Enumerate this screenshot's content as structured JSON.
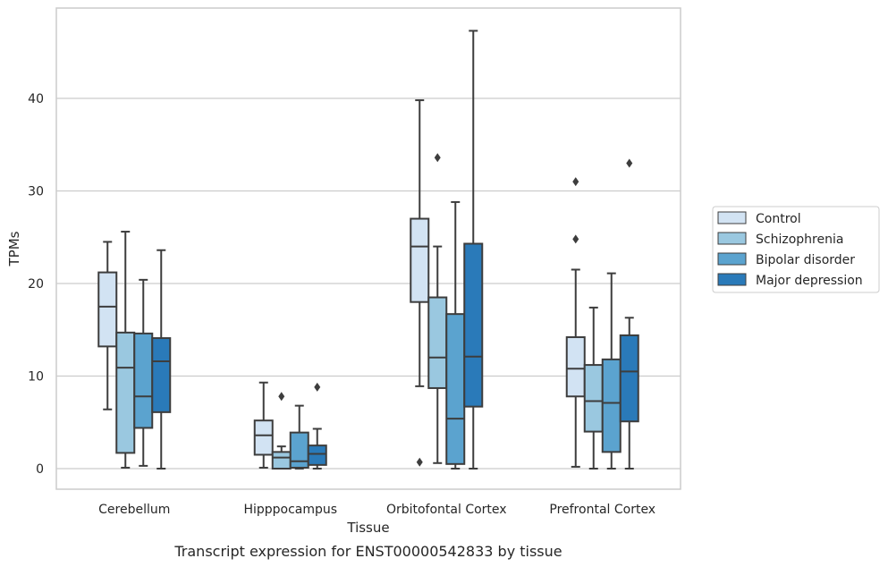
{
  "chart_data": {
    "type": "box",
    "title": "",
    "caption": "Transcript expression for ENST00000542833 by tissue",
    "xlabel": "Tissue",
    "ylabel": "TPMs",
    "ylim": [
      -2.3,
      49.5
    ],
    "yticks": [
      0,
      10,
      20,
      30,
      40
    ],
    "grid": "horizontal",
    "legend_position": "right-outside",
    "categories": [
      "Cerebellum",
      "Hipppocampus",
      "Orbitofontal Cortex",
      "Prefrontal Cortex"
    ],
    "series": [
      {
        "name": "Control",
        "color": "#d2e3f3",
        "boxes": [
          {
            "whisker_low": 6.4,
            "q1": 13.2,
            "median": 17.5,
            "q3": 21.2,
            "whisker_high": 24.5,
            "outliers": []
          },
          {
            "whisker_low": 0.1,
            "q1": 1.5,
            "median": 3.6,
            "q3": 5.2,
            "whisker_high": 9.3,
            "outliers": []
          },
          {
            "whisker_low": 8.9,
            "q1": 18.0,
            "median": 24.0,
            "q3": 27.0,
            "whisker_high": 39.8,
            "outliers": [
              0.7
            ]
          },
          {
            "whisker_low": 0.2,
            "q1": 7.8,
            "median": 10.8,
            "q3": 14.2,
            "whisker_high": 21.5,
            "outliers": [
              24.8,
              31.0
            ]
          }
        ]
      },
      {
        "name": "Schizophrenia",
        "color": "#9ac8e0",
        "boxes": [
          {
            "whisker_low": 0.1,
            "q1": 1.7,
            "median": 10.9,
            "q3": 14.7,
            "whisker_high": 25.6,
            "outliers": []
          },
          {
            "whisker_low": 0.0,
            "q1": 0.0,
            "median": 1.2,
            "q3": 1.8,
            "whisker_high": 2.4,
            "outliers": [
              7.8
            ]
          },
          {
            "whisker_low": 0.6,
            "q1": 8.7,
            "median": 12.0,
            "q3": 18.5,
            "whisker_high": 24.0,
            "outliers": [
              33.6
            ]
          },
          {
            "whisker_low": 0.0,
            "q1": 4.0,
            "median": 7.3,
            "q3": 11.2,
            "whisker_high": 17.4,
            "outliers": []
          }
        ]
      },
      {
        "name": "Bipolar disorder",
        "color": "#5ba3cf",
        "boxes": [
          {
            "whisker_low": 0.3,
            "q1": 4.4,
            "median": 7.8,
            "q3": 14.6,
            "whisker_high": 20.4,
            "outliers": []
          },
          {
            "whisker_low": 0.0,
            "q1": 0.1,
            "median": 0.8,
            "q3": 3.9,
            "whisker_high": 6.8,
            "outliers": []
          },
          {
            "whisker_low": 0.0,
            "q1": 0.5,
            "median": 5.4,
            "q3": 16.7,
            "whisker_high": 28.8,
            "outliers": []
          },
          {
            "whisker_low": 0.0,
            "q1": 1.8,
            "median": 7.1,
            "q3": 11.8,
            "whisker_high": 21.1,
            "outliers": []
          }
        ]
      },
      {
        "name": "Major depression",
        "color": "#2a7ab9",
        "boxes": [
          {
            "whisker_low": 0.0,
            "q1": 6.1,
            "median": 11.6,
            "q3": 14.1,
            "whisker_high": 23.6,
            "outliers": []
          },
          {
            "whisker_low": 0.0,
            "q1": 0.4,
            "median": 1.6,
            "q3": 2.5,
            "whisker_high": 4.3,
            "outliers": [
              8.8
            ]
          },
          {
            "whisker_low": 0.0,
            "q1": 6.7,
            "median": 12.1,
            "q3": 24.3,
            "whisker_high": 47.3,
            "outliers": []
          },
          {
            "whisker_low": 0.0,
            "q1": 5.1,
            "median": 10.5,
            "q3": 14.4,
            "whisker_high": 16.3,
            "outliers": [
              33.0
            ]
          }
        ]
      }
    ]
  }
}
